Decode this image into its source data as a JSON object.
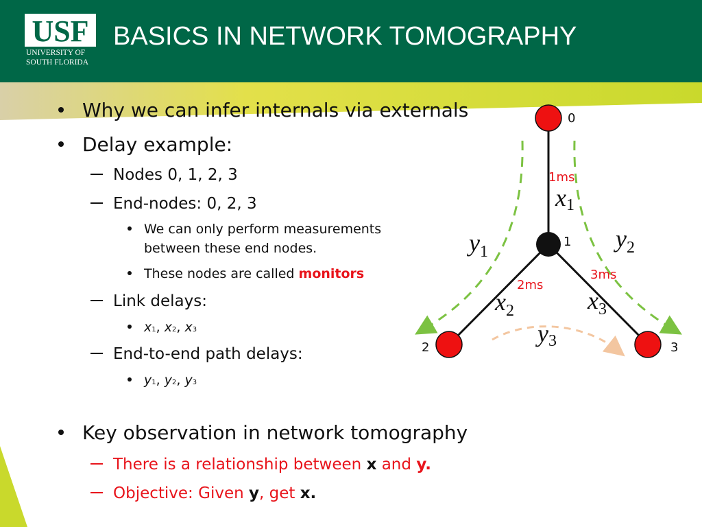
{
  "header": {
    "logo": "USF",
    "university_line1": "UNIVERSITY OF",
    "university_line2": "SOUTH FLORIDA",
    "title": "BASICS IN NETWORK TOMOGRAPHY"
  },
  "bullets": [
    {
      "text": "Why we can infer internals via externals"
    },
    {
      "text": "Delay example:",
      "items": [
        {
          "text": "Nodes 0, 1, 2, 3"
        },
        {
          "text": "End-nodes: 0, 2, 3",
          "items": [
            {
              "lines": [
                "We can only perform measurements",
                "between these end nodes."
              ]
            },
            {
              "text": "These nodes are called ",
              "emphasis": "monitors"
            }
          ]
        },
        {
          "text": "Link delays:",
          "items": [
            {
              "separator": ", ",
              "symbols": [
                [
                  "x",
                  "1"
                ],
                [
                  "x",
                  "2"
                ],
                [
                  "x",
                  "3"
                ]
              ]
            }
          ]
        },
        {
          "text": "End-to-end path delays:",
          "items": [
            {
              "separator": ", ",
              "symbols": [
                [
                  "y",
                  "1"
                ],
                [
                  "y",
                  "2"
                ],
                [
                  "y",
                  "3"
                ]
              ]
            }
          ]
        }
      ]
    },
    {
      "text": "Key observation in network tomography",
      "items": [
        {
          "parts": [
            "There is a relationship between ",
            "x",
            " and ",
            "y."
          ]
        },
        {
          "parts": [
            "Objective: Given ",
            "y",
            ", get ",
            "x."
          ]
        }
      ]
    }
  ],
  "diagram": {
    "nodes": [
      "0",
      "1",
      "2",
      "3"
    ],
    "links": [
      {
        "delay": "1ms",
        "variable": [
          "x",
          "1"
        ]
      },
      {
        "delay": "2ms",
        "variable": [
          "x",
          "2"
        ]
      },
      {
        "delay": "3ms",
        "variable": [
          "x",
          "3"
        ]
      }
    ],
    "paths": [
      [
        "y",
        "1"
      ],
      [
        "y",
        "2"
      ],
      [
        "y",
        "3"
      ]
    ]
  }
}
